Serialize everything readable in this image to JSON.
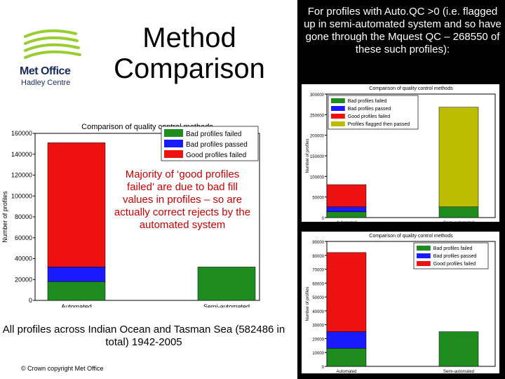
{
  "logo": {
    "line1": "Met Office",
    "line2": "Hadley Centre"
  },
  "slide_title": "Method Comparison",
  "right_caption": "For profiles with Auto.QC >0 (i.e. flagged up in semi-automated system and so have gone through the Mquest QC – 268550 of these such profiles):",
  "annotation": "Majority of ‘good profiles failed’ are due to bad fill values in profiles – so are actually correct rejects by the automated system",
  "bottom_caption": "All profiles across Indian Ocean and Tasman Sea (582486 in total) 1942-2005",
  "copyright": "© Crown copyright   Met Office",
  "chart_data": [
    {
      "id": "main",
      "type": "bar",
      "stacked": true,
      "title": "Comparison of quality control methods",
      "ylabel": "Number of profiles",
      "categories": [
        "Automated",
        "Semi-automated"
      ],
      "ylim": [
        0,
        160000
      ],
      "yticks": [
        0,
        20000,
        40000,
        60000,
        80000,
        100000,
        120000,
        140000,
        160000
      ],
      "legend_position": "top-right",
      "series": [
        {
          "name": "Bad profiles failed",
          "color": "#1e8c1e",
          "values": [
            18000,
            32000
          ]
        },
        {
          "name": "Bad profiles passed",
          "color": "#1a1aff",
          "values": [
            14000,
            0
          ]
        },
        {
          "name": "Good profiles failed",
          "color": "#ee1111",
          "values": [
            119000,
            0
          ]
        }
      ]
    },
    {
      "id": "top",
      "type": "bar",
      "stacked": true,
      "title": "Comparison of quality control methods",
      "ylabel": "Number of profiles",
      "categories": [
        "Automated",
        "Semi-automated"
      ],
      "ylim": [
        0,
        300000
      ],
      "yticks": [
        0,
        50000,
        100000,
        150000,
        200000,
        250000,
        300000
      ],
      "legend_position": "top-left",
      "series": [
        {
          "name": "Bad profiles failed",
          "color": "#1e8c1e",
          "values": [
            14000,
            26000
          ]
        },
        {
          "name": "Bad profiles passed",
          "color": "#1a1aff",
          "values": [
            12000,
            0
          ]
        },
        {
          "name": "Good profiles failed",
          "color": "#ee1111",
          "values": [
            54000,
            0
          ]
        },
        {
          "name": "Profiles flagged then passed",
          "color": "#bcbc00",
          "values": [
            0,
            242000
          ]
        }
      ]
    },
    {
      "id": "bottom",
      "type": "bar",
      "stacked": true,
      "title": "Comparison of quality control methods",
      "ylabel": "Number of profiles",
      "categories": [
        "Automated",
        "Semi-automated"
      ],
      "ylim": [
        0,
        90000
      ],
      "yticks": [
        0,
        10000,
        20000,
        30000,
        40000,
        50000,
        60000,
        70000,
        80000,
        90000
      ],
      "legend_position": "top-right",
      "series": [
        {
          "name": "Bad profiles failed",
          "color": "#1e8c1e",
          "values": [
            13000,
            25000
          ]
        },
        {
          "name": "Bad profiles passed",
          "color": "#1a1aff",
          "values": [
            12000,
            0
          ]
        },
        {
          "name": "Good profiles failed",
          "color": "#ee1111",
          "values": [
            57000,
            0
          ]
        }
      ]
    }
  ]
}
